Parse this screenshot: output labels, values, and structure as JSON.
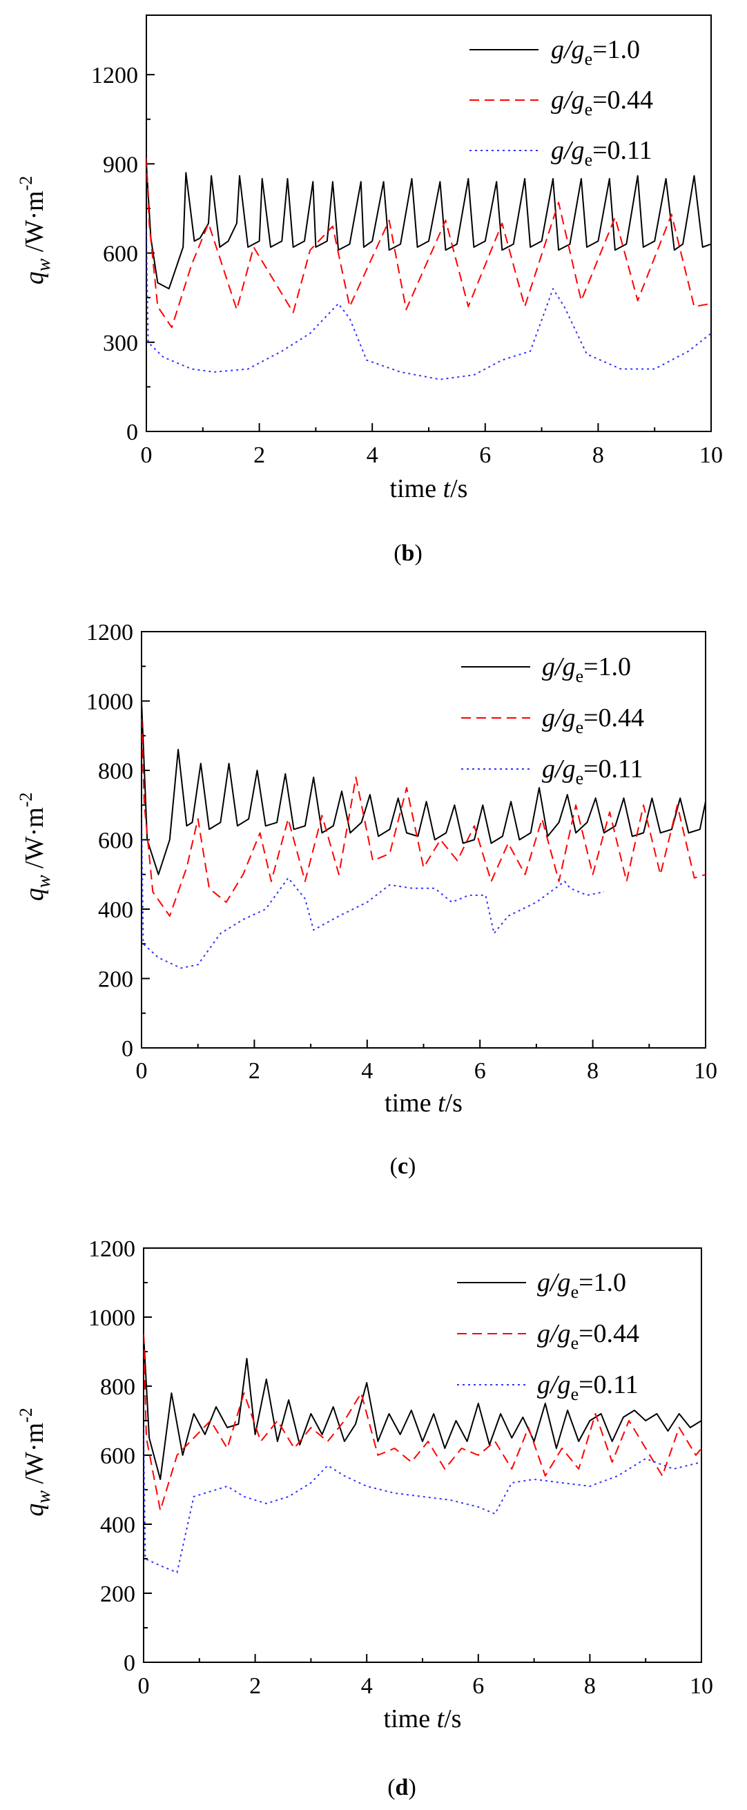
{
  "chart_data": [
    {
      "panel": "b",
      "type": "line",
      "xlabel": "time t/s",
      "ylabel": "q_w /W·m^-2",
      "xlim": [
        0,
        10
      ],
      "ylim": [
        0,
        1400
      ],
      "xticks": [
        0,
        2,
        4,
        6,
        8,
        10
      ],
      "yticks": [
        0,
        300,
        600,
        900,
        1200
      ],
      "legend_position": "top-right",
      "series": [
        {
          "name": "g/ge=1.0",
          "color": "#000000",
          "style": "solid",
          "x": [
            0,
            0.08,
            0.2,
            0.4,
            0.65,
            0.7,
            0.85,
            0.95,
            1.1,
            1.15,
            1.3,
            1.45,
            1.6,
            1.65,
            1.8,
            2.0,
            2.05,
            2.2,
            2.4,
            2.5,
            2.6,
            2.8,
            2.95,
            3.0,
            3.2,
            3.3,
            3.4,
            3.6,
            3.8,
            3.85,
            4.0,
            4.2,
            4.3,
            4.5,
            4.7,
            4.8,
            5.0,
            5.2,
            5.3,
            5.5,
            5.7,
            5.8,
            6.0,
            6.2,
            6.3,
            6.5,
            6.7,
            6.8,
            7.0,
            7.2,
            7.3,
            7.5,
            7.7,
            7.8,
            8.0,
            8.2,
            8.3,
            8.5,
            8.7,
            8.8,
            9.0,
            9.2,
            9.35,
            9.5,
            9.7,
            9.85,
            10.0
          ],
          "y": [
            900,
            650,
            500,
            480,
            620,
            870,
            640,
            650,
            700,
            860,
            620,
            640,
            700,
            860,
            620,
            640,
            850,
            620,
            640,
            850,
            620,
            640,
            840,
            620,
            640,
            840,
            610,
            630,
            840,
            620,
            640,
            840,
            610,
            630,
            850,
            620,
            640,
            840,
            610,
            630,
            850,
            620,
            640,
            840,
            610,
            630,
            850,
            620,
            640,
            850,
            610,
            630,
            850,
            620,
            640,
            850,
            610,
            630,
            860,
            620,
            640,
            850,
            610,
            630,
            860,
            620,
            630
          ]
        },
        {
          "name": "g/ge=0.44",
          "color": "#ff0000",
          "style": "dashed",
          "x": [
            0,
            0.05,
            0.2,
            0.45,
            0.8,
            1.1,
            1.6,
            1.9,
            2.6,
            2.9,
            3.3,
            3.6,
            4.3,
            4.6,
            5.3,
            5.7,
            6.3,
            6.7,
            7.3,
            7.7,
            8.3,
            8.7,
            9.3,
            9.7,
            10.0
          ],
          "y": [
            920,
            700,
            420,
            350,
            560,
            700,
            410,
            620,
            400,
            610,
            690,
            420,
            710,
            410,
            710,
            420,
            700,
            420,
            770,
            440,
            720,
            440,
            730,
            420,
            430
          ]
        },
        {
          "name": "g/ge=0.11",
          "color": "#3333ff",
          "style": "dotted",
          "x": [
            0,
            0.03,
            0.3,
            0.8,
            1.2,
            1.8,
            2.4,
            2.9,
            3.4,
            3.6,
            3.9,
            4.5,
            5.2,
            5.8,
            6.3,
            6.8,
            7.2,
            7.4,
            7.8,
            8.4,
            9.0,
            9.6,
            10.0
          ],
          "y": [
            680,
            300,
            250,
            210,
            200,
            210,
            270,
            330,
            430,
            380,
            240,
            200,
            175,
            190,
            240,
            270,
            480,
            420,
            260,
            210,
            210,
            270,
            330
          ]
        }
      ]
    },
    {
      "panel": "c",
      "type": "line",
      "xlabel": "time t/s",
      "ylabel": "q_w /W·m^-2",
      "xlim": [
        0,
        10
      ],
      "ylim": [
        0,
        1200
      ],
      "xticks": [
        0,
        2,
        4,
        6,
        8,
        10
      ],
      "yticks": [
        0,
        200,
        400,
        600,
        800,
        1000,
        1200
      ],
      "legend_position": "top-right",
      "series": [
        {
          "name": "g/ge=1.0",
          "color": "#000000",
          "style": "solid",
          "x": [
            0,
            0.1,
            0.3,
            0.5,
            0.65,
            0.8,
            0.9,
            1.05,
            1.2,
            1.4,
            1.55,
            1.7,
            1.9,
            2.05,
            2.2,
            2.4,
            2.55,
            2.7,
            2.9,
            3.05,
            3.2,
            3.4,
            3.55,
            3.7,
            3.9,
            4.05,
            4.2,
            4.4,
            4.55,
            4.7,
            4.9,
            5.05,
            5.2,
            5.4,
            5.55,
            5.7,
            5.9,
            6.05,
            6.2,
            6.4,
            6.55,
            6.7,
            6.9,
            7.05,
            7.2,
            7.4,
            7.55,
            7.7,
            7.9,
            8.05,
            8.2,
            8.4,
            8.55,
            8.7,
            8.9,
            9.05,
            9.2,
            9.4,
            9.55,
            9.7,
            9.9,
            10.0
          ],
          "y": [
            1000,
            600,
            500,
            600,
            860,
            640,
            650,
            820,
            630,
            650,
            820,
            640,
            660,
            800,
            640,
            650,
            790,
            630,
            640,
            780,
            620,
            640,
            740,
            620,
            650,
            730,
            610,
            630,
            720,
            620,
            610,
            710,
            600,
            620,
            700,
            590,
            600,
            700,
            590,
            610,
            710,
            600,
            620,
            750,
            610,
            650,
            730,
            620,
            650,
            720,
            620,
            640,
            720,
            610,
            620,
            720,
            620,
            630,
            720,
            620,
            630,
            710
          ]
        },
        {
          "name": "g/ge=0.44",
          "color": "#ff0000",
          "style": "dashed",
          "x": [
            0,
            0.05,
            0.2,
            0.5,
            0.8,
            1.0,
            1.2,
            1.5,
            1.8,
            2.1,
            2.3,
            2.6,
            2.9,
            3.2,
            3.5,
            3.8,
            4.1,
            4.4,
            4.7,
            5.0,
            5.3,
            5.6,
            5.9,
            6.2,
            6.5,
            6.8,
            7.1,
            7.4,
            7.7,
            8.0,
            8.3,
            8.6,
            8.9,
            9.2,
            9.5,
            9.8,
            10.0
          ],
          "y": [
            950,
            700,
            450,
            380,
            520,
            660,
            460,
            420,
            500,
            620,
            480,
            660,
            480,
            670,
            500,
            780,
            540,
            560,
            750,
            520,
            600,
            540,
            640,
            480,
            590,
            500,
            660,
            480,
            700,
            500,
            680,
            480,
            700,
            500,
            700,
            490,
            500
          ]
        },
        {
          "name": "g/ge=0.11",
          "color": "#3333ff",
          "style": "dotted",
          "x": [
            0,
            0.03,
            0.3,
            0.7,
            1.0,
            1.4,
            1.8,
            2.2,
            2.6,
            2.9,
            3.05,
            3.5,
            4.0,
            4.4,
            4.8,
            5.2,
            5.5,
            5.8,
            6.1,
            6.25,
            6.5,
            7.0,
            7.5,
            7.6,
            7.9,
            8.2
          ],
          "y": [
            680,
            300,
            260,
            230,
            240,
            330,
            370,
            400,
            490,
            430,
            340,
            380,
            420,
            470,
            460,
            460,
            420,
            440,
            440,
            330,
            380,
            420,
            480,
            460,
            440,
            450
          ]
        }
      ]
    },
    {
      "panel": "d",
      "type": "line",
      "xlabel": "time t/s",
      "ylabel": "q_w /W·m^-2",
      "xlim": [
        0,
        10
      ],
      "ylim": [
        0,
        1200
      ],
      "xticks": [
        0,
        2,
        4,
        6,
        8,
        10
      ],
      "yticks": [
        0,
        200,
        400,
        600,
        800,
        1000,
        1200
      ],
      "legend_position": "top-right",
      "series": [
        {
          "name": "g/ge=1.0",
          "color": "#000000",
          "style": "solid",
          "x": [
            0,
            0.1,
            0.3,
            0.5,
            0.7,
            0.9,
            1.1,
            1.3,
            1.5,
            1.7,
            1.85,
            2.0,
            2.2,
            2.4,
            2.6,
            2.8,
            3.0,
            3.2,
            3.4,
            3.6,
            3.8,
            4.0,
            4.2,
            4.4,
            4.6,
            4.8,
            5.0,
            5.2,
            5.4,
            5.6,
            5.8,
            6.0,
            6.2,
            6.4,
            6.6,
            6.8,
            7.0,
            7.2,
            7.4,
            7.6,
            7.8,
            8.0,
            8.2,
            8.4,
            8.6,
            8.8,
            9.0,
            9.2,
            9.4,
            9.6,
            9.8,
            10.0
          ],
          "y": [
            950,
            650,
            530,
            780,
            600,
            720,
            660,
            740,
            680,
            690,
            880,
            660,
            820,
            640,
            760,
            630,
            720,
            660,
            740,
            640,
            690,
            810,
            640,
            720,
            660,
            730,
            640,
            720,
            620,
            700,
            640,
            750,
            630,
            720,
            650,
            710,
            640,
            750,
            620,
            730,
            640,
            700,
            720,
            640,
            710,
            730,
            700,
            720,
            670,
            720,
            680,
            700
          ]
        },
        {
          "name": "g/ge=0.44",
          "color": "#ff0000",
          "style": "dashed",
          "x": [
            0,
            0.05,
            0.3,
            0.6,
            0.9,
            1.2,
            1.5,
            1.8,
            2.1,
            2.4,
            2.7,
            3.0,
            3.3,
            3.6,
            3.9,
            4.2,
            4.5,
            4.8,
            5.1,
            5.4,
            5.7,
            6.0,
            6.3,
            6.6,
            6.9,
            7.2,
            7.5,
            7.8,
            8.1,
            8.4,
            8.7,
            9.0,
            9.3,
            9.6,
            9.9,
            10.0
          ],
          "y": [
            950,
            650,
            440,
            600,
            650,
            700,
            620,
            780,
            640,
            700,
            620,
            680,
            640,
            700,
            780,
            600,
            620,
            580,
            640,
            560,
            620,
            600,
            640,
            560,
            680,
            540,
            620,
            560,
            720,
            580,
            700,
            620,
            540,
            680,
            600,
            620
          ]
        },
        {
          "name": "g/ge=0.11",
          "color": "#3333ff",
          "style": "dotted",
          "x": [
            0,
            0.03,
            0.3,
            0.6,
            0.9,
            1.1,
            1.5,
            1.8,
            2.2,
            2.6,
            3.0,
            3.3,
            3.6,
            4.0,
            4.5,
            5.0,
            5.5,
            6.0,
            6.3,
            6.6,
            7.0,
            7.5,
            8.0,
            8.5,
            9.0,
            9.5,
            10.0
          ],
          "y": [
            680,
            300,
            280,
            260,
            480,
            490,
            510,
            480,
            460,
            480,
            520,
            570,
            540,
            510,
            490,
            480,
            470,
            450,
            430,
            520,
            530,
            520,
            510,
            540,
            590,
            560,
            580
          ]
        }
      ]
    }
  ],
  "panel_labels": [
    "(b)",
    "(c)",
    "(d)"
  ],
  "legend_labels": {
    "s1": [
      "g/g",
      "e",
      "=1.0"
    ],
    "s2": [
      "g/g",
      "e",
      "=0.44"
    ],
    "s3": [
      "g/g",
      "e",
      "=0.11"
    ]
  },
  "axis_text": {
    "x_main": "time ",
    "x_var": "t",
    "x_unit": "/s",
    "y_var": "q",
    "y_sub": "w",
    "y_unit": " /W·m",
    "y_exp": "-2"
  }
}
